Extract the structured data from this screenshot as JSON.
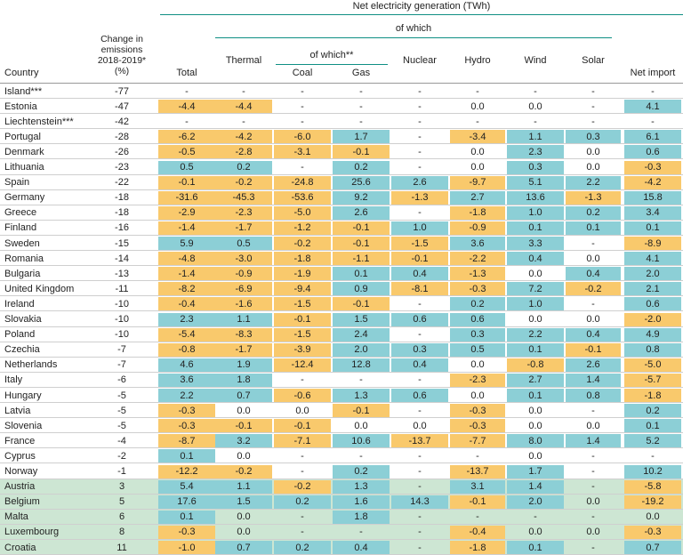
{
  "header": {
    "group": "Net electricity generation (TWh)",
    "subgroup": "of which",
    "subsubgroup": "of which**"
  },
  "table": {
    "columns": [
      "Country",
      "Change in emissions 2018-2019* (%)",
      "Total",
      "Thermal",
      "Coal",
      "Gas",
      "Nuclear",
      "Hydro",
      "Wind",
      "Solar",
      "Net import"
    ],
    "rows": [
      [
        "Island***",
        "-77",
        "-",
        "-",
        "-",
        "-",
        "-",
        "-",
        "-",
        "-",
        "-"
      ],
      [
        "Estonia",
        "-47",
        "-4.4",
        "-4.4",
        "-",
        "-",
        "-",
        "0.0",
        "0.0",
        "-",
        "4.1"
      ],
      [
        "Liechtenstein***",
        "-42",
        "-",
        "-",
        "-",
        "-",
        "-",
        "-",
        "-",
        "-",
        "-"
      ],
      [
        "Portugal",
        "-28",
        "-6.2",
        "-4.2",
        "-6.0",
        "1.7",
        "-",
        "-3.4",
        "1.1",
        "0.3",
        "6.1"
      ],
      [
        "Denmark",
        "-26",
        "-0.5",
        "-2.8",
        "-3.1",
        "-0.1",
        "-",
        "0.0",
        "2.3",
        "0.0",
        "0.6"
      ],
      [
        "Lithuania",
        "-23",
        "0.5",
        "0.2",
        "-",
        "0.2",
        "-",
        "0.0",
        "0.3",
        "0.0",
        "-0.3"
      ],
      [
        "Spain",
        "-22",
        "-0.1",
        "-0.2",
        "-24.8",
        "25.6",
        "2.6",
        "-9.7",
        "5.1",
        "2.2",
        "-4.2"
      ],
      [
        "Germany",
        "-18",
        "-31.6",
        "-45.3",
        "-53.6",
        "9.2",
        "-1.3",
        "2.7",
        "13.6",
        "-1.3",
        "15.8"
      ],
      [
        "Greece",
        "-18",
        "-2.9",
        "-2.3",
        "-5.0",
        "2.6",
        "-",
        "-1.8",
        "1.0",
        "0.2",
        "3.4"
      ],
      [
        "Finland",
        "-16",
        "-1.4",
        "-1.7",
        "-1.2",
        "-0.1",
        "1.0",
        "-0.9",
        "0.1",
        "0.1",
        "0.1"
      ],
      [
        "Sweden",
        "-15",
        "5.9",
        "0.5",
        "-0.2",
        "-0.1",
        "-1.5",
        "3.6",
        "3.3",
        "-",
        "-8.9"
      ],
      [
        "Romania",
        "-14",
        "-4.8",
        "-3.0",
        "-1.8",
        "-1.1",
        "-0.1",
        "-2.2",
        "0.4",
        "0.0",
        "4.1"
      ],
      [
        "Bulgaria",
        "-13",
        "-1.4",
        "-0.9",
        "-1.9",
        "0.1",
        "0.4",
        "-1.3",
        "0.0",
        "0.4",
        "2.0"
      ],
      [
        "United Kingdom",
        "-11",
        "-8.2",
        "-6.9",
        "-9.4",
        "0.9",
        "-8.1",
        "-0.3",
        "7.2",
        "-0.2",
        "2.1"
      ],
      [
        "Ireland",
        "-10",
        "-0.4",
        "-1.6",
        "-1.5",
        "-0.1",
        "-",
        "0.2",
        "1.0",
        "-",
        "0.6"
      ],
      [
        "Slovakia",
        "-10",
        "2.3",
        "1.1",
        "-0.1",
        "1.5",
        "0.6",
        "0.6",
        "0.0",
        "0.0",
        "-2.0"
      ],
      [
        "Poland",
        "-10",
        "-5.4",
        "-8.3",
        "-1.5",
        "2.4",
        "-",
        "0.3",
        "2.2",
        "0.4",
        "4.9"
      ],
      [
        "Czechia",
        "-7",
        "-0.8",
        "-1.7",
        "-3.9",
        "2.0",
        "0.3",
        "0.5",
        "0.1",
        "-0.1",
        "0.8"
      ],
      [
        "Netherlands",
        "-7",
        "4.6",
        "1.9",
        "-12.4",
        "12.8",
        "0.4",
        "0.0",
        "-0.8",
        "2.6",
        "-5.0"
      ],
      [
        "Italy",
        "-6",
        "3.6",
        "1.8",
        "-",
        "-",
        "-",
        "-2.3",
        "2.7",
        "1.4",
        "-5.7"
      ],
      [
        "Hungary",
        "-5",
        "2.2",
        "0.7",
        "-0.6",
        "1.3",
        "0.6",
        "0.0",
        "0.1",
        "0.8",
        "-1.8"
      ],
      [
        "Latvia",
        "-5",
        "-0.3",
        "0.0",
        "0.0",
        "-0.1",
        "-",
        "-0.3",
        "0.0",
        "-",
        "0.2"
      ],
      [
        "Slovenia",
        "-5",
        "-0.3",
        "-0.1",
        "-0.1",
        "0.0",
        "0.0",
        "-0.3",
        "0.0",
        "0.0",
        "0.1"
      ],
      [
        "France",
        "-4",
        "-8.7",
        "3.2",
        "-7.1",
        "10.6",
        "-13.7",
        "-7.7",
        "8.0",
        "1.4",
        "5.2"
      ],
      [
        "Cyprus",
        "-2",
        "0.1",
        "0.0",
        "-",
        "-",
        "-",
        "-",
        "0.0",
        "-",
        "-"
      ],
      [
        "Norway",
        "-1",
        "-12.2",
        "-0.2",
        "-",
        "0.2",
        "-",
        "-13.7",
        "1.7",
        "-",
        "10.2"
      ],
      [
        "Austria",
        "3",
        "5.4",
        "1.1",
        "-0.2",
        "1.3",
        "-",
        "3.1",
        "1.4",
        "-",
        "-5.8"
      ],
      [
        "Belgium",
        "5",
        "17.6",
        "1.5",
        "0.2",
        "1.6",
        "14.3",
        "-0.1",
        "2.0",
        "0.0",
        "-19.2"
      ],
      [
        "Malta",
        "6",
        "0.1",
        "0.0",
        "-",
        "1.8",
        "-",
        "-",
        "-",
        "-",
        "0.0"
      ],
      [
        "Luxembourg",
        "8",
        "-0.3",
        "0.0",
        "-",
        "-",
        "-",
        "-0.4",
        "0.0",
        "0.0",
        "-0.3"
      ],
      [
        "Croatia",
        "11",
        "-1.0",
        "0.7",
        "0.2",
        "0.4",
        "-",
        "-1.8",
        "0.1",
        "-",
        "0.7"
      ]
    ]
  }
}
